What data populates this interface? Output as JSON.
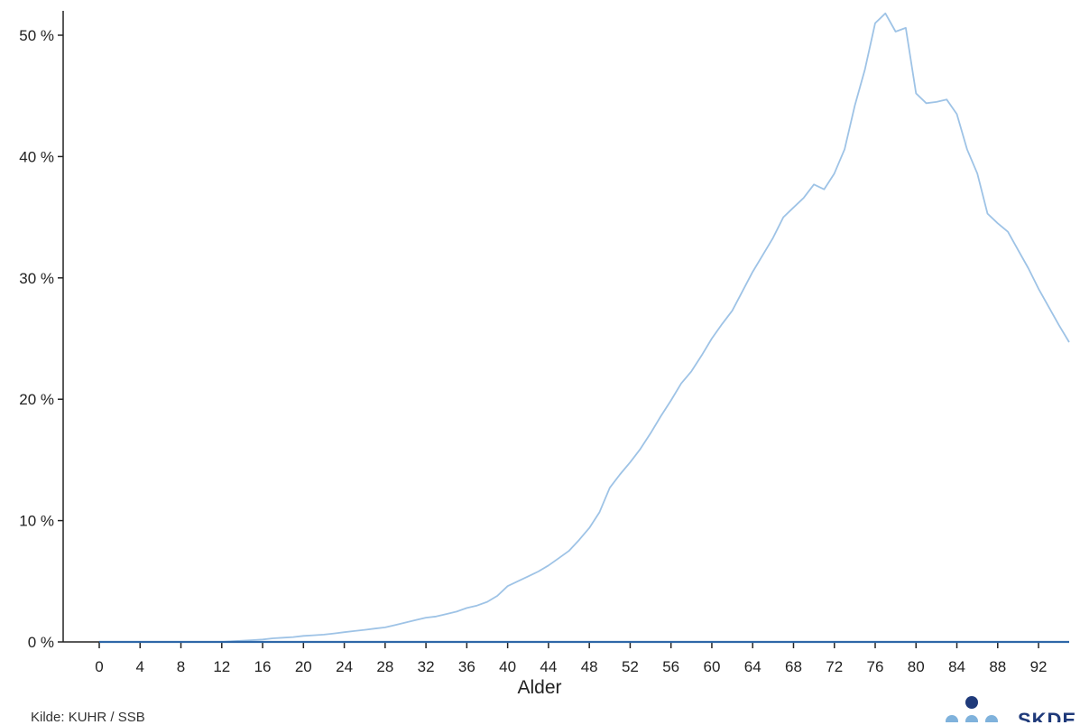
{
  "source": "Kilde: KUHR / SSB",
  "logo": {
    "text": "SKDE",
    "dark_color": "#1f3a7a",
    "light_color": "#7fb2dc"
  },
  "chart_data": {
    "type": "line",
    "title": "",
    "xlabel": "Alder",
    "ylabel": "",
    "xlim": [
      0,
      95
    ],
    "ylim": [
      0,
      52
    ],
    "x_ticks": [
      0,
      4,
      8,
      12,
      16,
      20,
      24,
      28,
      32,
      36,
      40,
      44,
      48,
      52,
      56,
      60,
      64,
      68,
      72,
      76,
      80,
      84,
      88,
      92
    ],
    "x_tick_labels": [
      "0",
      "4",
      "8",
      "12",
      "16",
      "20",
      "24",
      "28",
      "32",
      "36",
      "40",
      "44",
      "48",
      "52",
      "56",
      "60",
      "64",
      "68",
      "72",
      "76",
      "80",
      "84",
      "88",
      "92"
    ],
    "y_ticks": [
      0,
      10,
      20,
      30,
      40,
      50
    ],
    "y_tick_labels": [
      "0 %",
      "10 %",
      "20 %",
      "30 %",
      "40 %",
      "50 %"
    ],
    "grid": false,
    "legend": "none",
    "series": [
      {
        "color": "#9ec3e6",
        "x": [
          0,
          1,
          2,
          3,
          4,
          5,
          6,
          7,
          8,
          9,
          10,
          11,
          12,
          13,
          14,
          15,
          16,
          17,
          18,
          19,
          20,
          21,
          22,
          23,
          24,
          25,
          26,
          27,
          28,
          29,
          30,
          31,
          32,
          33,
          34,
          35,
          36,
          37,
          38,
          39,
          40,
          41,
          42,
          43,
          44,
          45,
          46,
          47,
          48,
          49,
          50,
          51,
          52,
          53,
          54,
          55,
          56,
          57,
          58,
          59,
          60,
          61,
          62,
          63,
          64,
          65,
          66,
          67,
          68,
          69,
          70,
          71,
          72,
          73,
          74,
          75,
          76,
          77,
          78,
          79,
          80,
          81,
          82,
          83,
          84,
          85,
          86,
          87,
          88,
          89,
          90,
          91,
          92,
          93,
          94,
          95
        ],
        "values": [
          0,
          0,
          0,
          0,
          0,
          0,
          0,
          0,
          0,
          0,
          0,
          0,
          0,
          0.05,
          0.1,
          0.15,
          0.2,
          0.3,
          0.35,
          0.4,
          0.5,
          0.55,
          0.6,
          0.7,
          0.8,
          0.9,
          1.0,
          1.1,
          1.2,
          1.4,
          1.6,
          1.8,
          2.0,
          2.1,
          2.3,
          2.5,
          2.8,
          3.0,
          3.3,
          3.8,
          4.6,
          5.0,
          5.4,
          5.8,
          6.3,
          6.9,
          7.5,
          8.4,
          9.4,
          10.7,
          12.7,
          13.8,
          14.8,
          15.9,
          17.2,
          18.6,
          19.9,
          21.3,
          22.3,
          23.6,
          25.0,
          26.2,
          27.3,
          28.9,
          30.5,
          31.9,
          33.3,
          35.0,
          35.8,
          36.6,
          37.7,
          37.3,
          38.6,
          40.6,
          44.2,
          47.2,
          51.0,
          51.8,
          50.3,
          50.6,
          45.2,
          44.4,
          44.5,
          44.7,
          43.5,
          40.6,
          38.6,
          35.3,
          34.5,
          33.8,
          32.3,
          30.8,
          29.1,
          27.6,
          26.1,
          24.7
        ]
      },
      {
        "color": "#2e67a8",
        "x": [
          0,
          95
        ],
        "values": [
          0,
          0
        ]
      }
    ]
  }
}
